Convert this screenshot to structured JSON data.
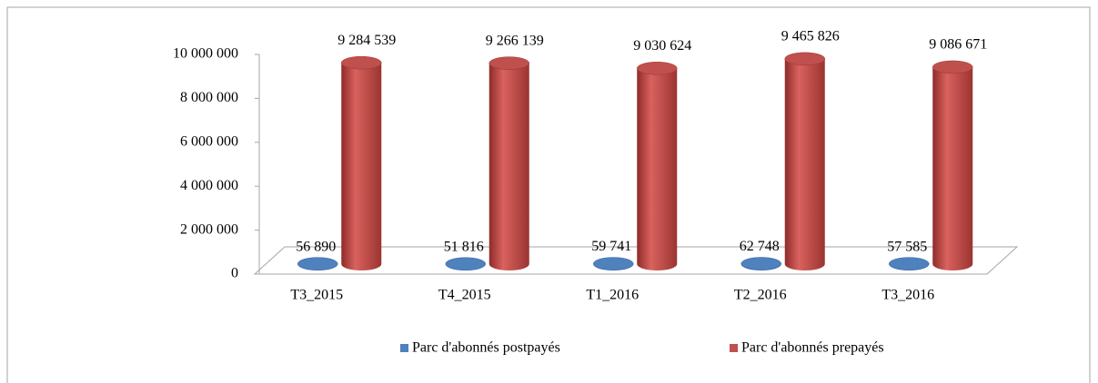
{
  "chart_data": {
    "type": "bar3d",
    "categories": [
      "T3_2015",
      "T4_2015",
      "T1_2016",
      "T2_2016",
      "T3_2016"
    ],
    "series": [
      {
        "name": "Parc d'abonnés postpayés",
        "color": "#4f81bd",
        "values": [
          56890,
          51816,
          59741,
          62748,
          57585
        ],
        "value_labels": [
          "56 890",
          "51 816",
          "59 741",
          "62 748",
          "57 585"
        ]
      },
      {
        "name": "Parc d'abonnés prepayés",
        "color": "#c0504d",
        "values": [
          9284539,
          9266139,
          9030624,
          9465826,
          9086671
        ],
        "value_labels": [
          "9 284 539",
          "9 266 139",
          "9 030 624",
          "9 465 826",
          "9 086 671"
        ]
      }
    ],
    "ylim": [
      0,
      10000000
    ],
    "yticks": [
      0,
      {
        "value": 2000000,
        "label": "2 000 000"
      },
      {
        "value": 4000000,
        "label": "4 000 000"
      },
      {
        "value": 6000000,
        "label": "6 000 000"
      },
      {
        "value": 8000000,
        "label": "8 000 000"
      },
      {
        "value": 10000000,
        "label": "10 000 000"
      }
    ],
    "legend": "bottom"
  }
}
